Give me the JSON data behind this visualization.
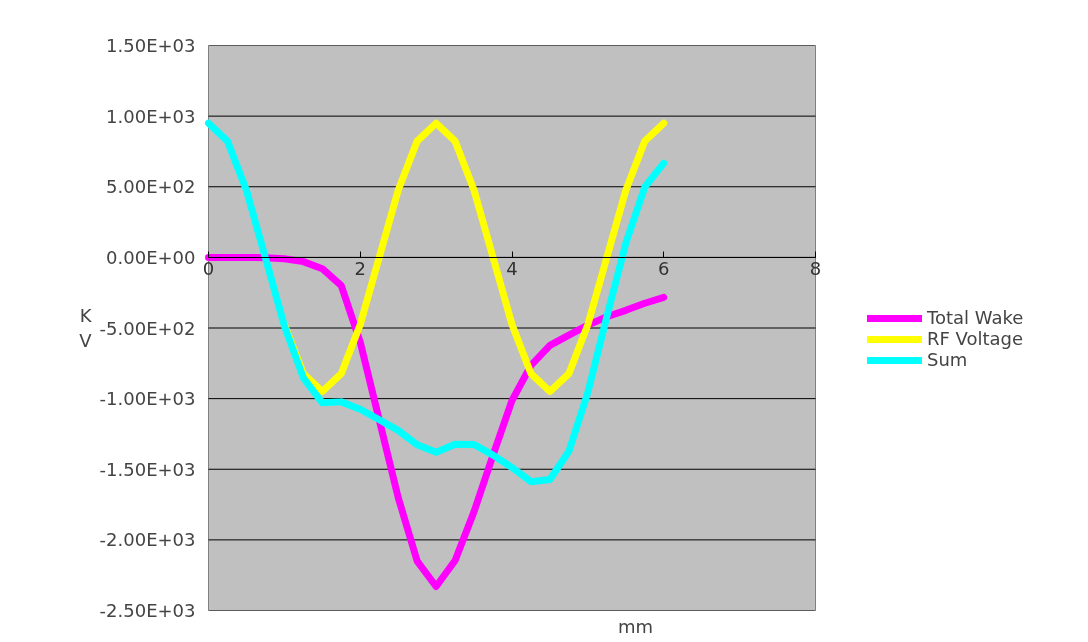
{
  "chart_data": {
    "type": "line",
    "xlabel": "mm",
    "ylabel": "K\nV",
    "x": [
      0,
      0.25,
      0.5,
      0.75,
      1,
      1.25,
      1.5,
      1.75,
      2,
      2.25,
      2.5,
      2.75,
      3,
      3.25,
      3.5,
      3.75,
      4,
      4.25,
      4.5,
      4.75,
      5,
      5.25,
      5.5,
      5.75,
      6
    ],
    "series": [
      {
        "name": "Total Wake",
        "color": "#ff00ff",
        "values": [
          0,
          0,
          0,
          -3,
          -10,
          -30,
          -80,
          -200,
          -600,
          -1150,
          -1700,
          -2150,
          -2330,
          -2146,
          -1800,
          -1400,
          -1013,
          -765,
          -623,
          -550,
          -480,
          -420,
          -375,
          -325,
          -283
        ]
      },
      {
        "name": "RF Voltage",
        "color": "#ffff00",
        "values": [
          null,
          null,
          null,
          null,
          -475,
          -823,
          -950,
          -823,
          -475,
          0,
          475,
          823,
          950,
          823,
          475,
          0,
          -475,
          -823,
          -950,
          -823,
          -475,
          0,
          475,
          823,
          950
        ]
      },
      {
        "name": "Sum",
        "color": "#00ffff",
        "values": [
          950,
          823,
          475,
          -3,
          -485,
          -853,
          -1030,
          -1023,
          -1075,
          -1150,
          -1225,
          -1327,
          -1380,
          -1323,
          -1325,
          -1400,
          -1488,
          -1588,
          -1573,
          -1373,
          -955,
          -420,
          100,
          498,
          667
        ]
      }
    ],
    "xlim": [
      0,
      8
    ],
    "xticks": [
      0,
      2,
      4,
      6,
      8
    ],
    "ylim": [
      -2500,
      1500
    ],
    "yticks": [
      {
        "value": -2500,
        "label": "-2.50E+03"
      },
      {
        "value": -2000,
        "label": "-2.00E+03"
      },
      {
        "value": -1500,
        "label": "-1.50E+03"
      },
      {
        "value": -1000,
        "label": "-1.00E+03"
      },
      {
        "value": -500,
        "label": "-5.00E+02"
      },
      {
        "value": 0,
        "label": "0.00E+00"
      },
      {
        "value": 500,
        "label": "5.00E+02"
      },
      {
        "value": 1000,
        "label": "1.00E+03"
      },
      {
        "value": 1500,
        "label": "1.50E+03"
      }
    ],
    "grid": "y",
    "legend": "right",
    "marker": "none",
    "line_style": "solid"
  }
}
